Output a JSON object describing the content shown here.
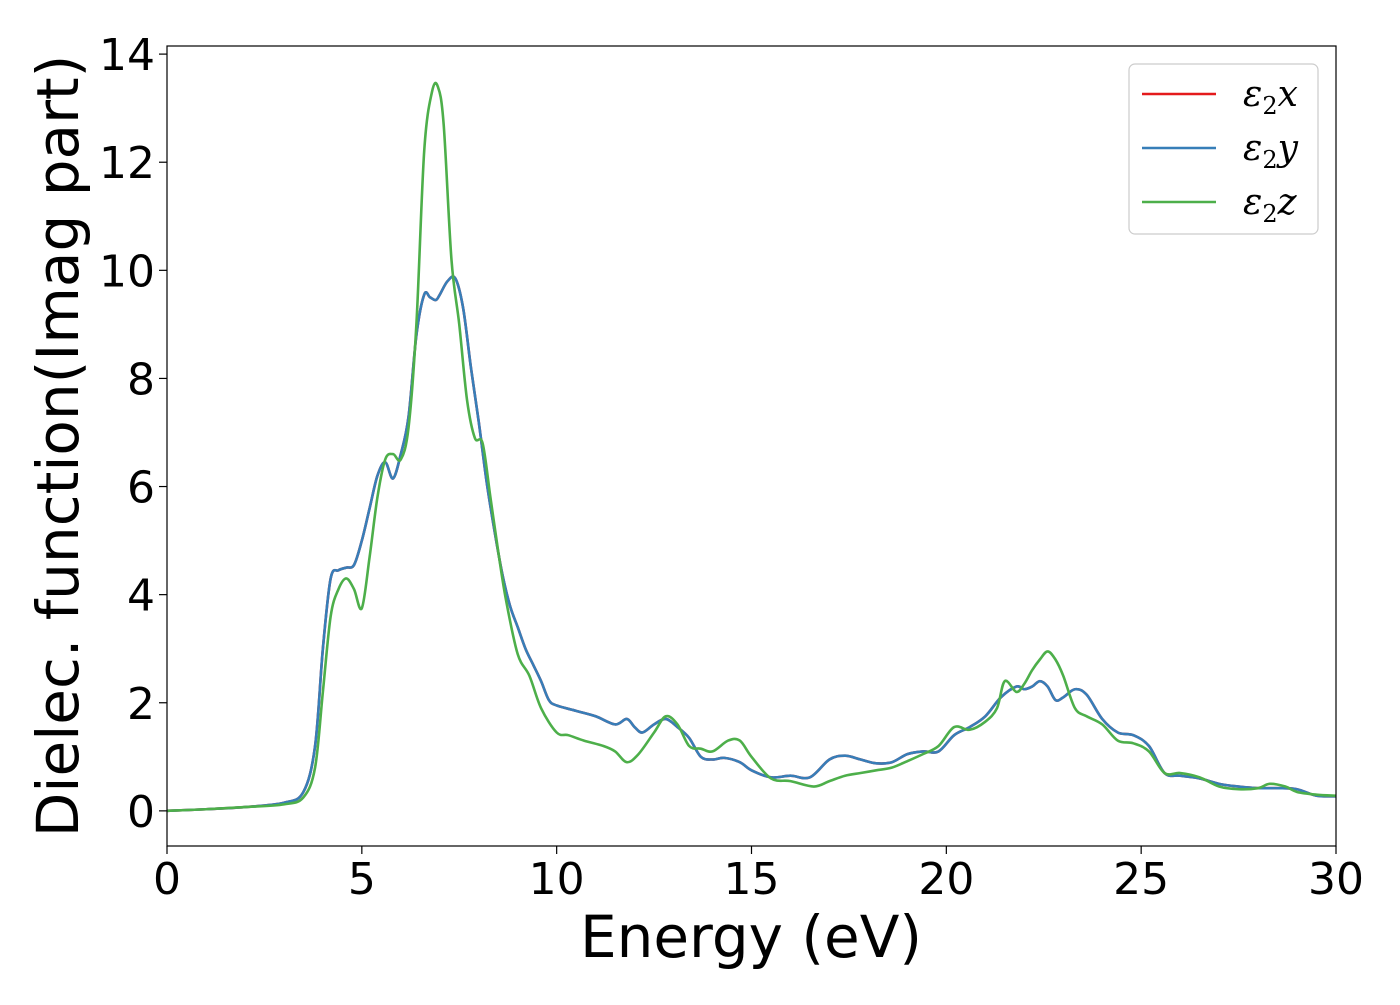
{
  "chart_data": {
    "type": "line",
    "title": "",
    "xlabel": "Energy (eV)",
    "ylabel": "Dielec. function(Imag part)",
    "xlim": [
      0,
      30
    ],
    "ylim": [
      -0.65,
      14.15
    ],
    "xticks": [
      0,
      5,
      10,
      15,
      20,
      25,
      30
    ],
    "yticks": [
      0,
      2,
      4,
      6,
      8,
      10,
      12,
      14
    ],
    "grid": false,
    "legend_position": "top-right",
    "series": [
      {
        "name": "ε2x",
        "legend_base": "ε",
        "legend_sub": "2",
        "legend_var": "x",
        "color": "#e41a1c",
        "x": [
          0,
          1,
          2,
          3,
          3.5,
          3.8,
          4.0,
          4.2,
          4.4,
          4.6,
          4.8,
          5.0,
          5.2,
          5.4,
          5.6,
          5.8,
          6.0,
          6.2,
          6.4,
          6.6,
          6.75,
          6.9,
          7.0,
          7.2,
          7.4,
          7.6,
          7.8,
          8.0,
          8.2,
          8.4,
          8.6,
          8.8,
          9.0,
          9.2,
          9.4,
          9.6,
          9.8,
          10.0,
          10.5,
          11.0,
          11.5,
          11.8,
          12.0,
          12.2,
          12.5,
          12.8,
          13.1,
          13.4,
          13.7,
          14.0,
          14.3,
          14.7,
          15.0,
          15.5,
          16.0,
          16.5,
          17.0,
          17.4,
          17.8,
          18.2,
          18.6,
          19.0,
          19.4,
          19.8,
          20.2,
          20.6,
          21.0,
          21.4,
          21.8,
          22.0,
          22.2,
          22.4,
          22.6,
          22.8,
          23.0,
          23.3,
          23.6,
          24.0,
          24.4,
          24.8,
          25.2,
          25.6,
          26.0,
          26.5,
          27.0,
          27.5,
          28.0,
          28.5,
          29.0,
          29.5,
          30.0
        ],
        "y": [
          0.0,
          0.03,
          0.07,
          0.15,
          0.35,
          1.2,
          3.0,
          4.3,
          4.45,
          4.5,
          4.55,
          5.0,
          5.6,
          6.2,
          6.45,
          6.15,
          6.6,
          7.3,
          8.8,
          9.55,
          9.5,
          9.45,
          9.55,
          9.8,
          9.85,
          9.3,
          8.2,
          7.2,
          6.1,
          5.2,
          4.4,
          3.8,
          3.4,
          3.0,
          2.7,
          2.4,
          2.05,
          1.95,
          1.85,
          1.75,
          1.6,
          1.7,
          1.55,
          1.45,
          1.6,
          1.7,
          1.55,
          1.35,
          1.0,
          0.95,
          0.98,
          0.9,
          0.75,
          0.62,
          0.65,
          0.62,
          0.95,
          1.02,
          0.95,
          0.88,
          0.9,
          1.05,
          1.1,
          1.1,
          1.4,
          1.55,
          1.75,
          2.1,
          2.3,
          2.25,
          2.3,
          2.4,
          2.3,
          2.05,
          2.1,
          2.25,
          2.15,
          1.7,
          1.45,
          1.4,
          1.2,
          0.7,
          0.65,
          0.6,
          0.5,
          0.45,
          0.42,
          0.42,
          0.4,
          0.28,
          0.27
        ]
      },
      {
        "name": "ε2y",
        "legend_base": "ε",
        "legend_sub": "2",
        "legend_var": "y",
        "color": "#377eb8",
        "x": [
          0,
          1,
          2,
          3,
          3.5,
          3.8,
          4.0,
          4.2,
          4.4,
          4.6,
          4.8,
          5.0,
          5.2,
          5.4,
          5.6,
          5.8,
          6.0,
          6.2,
          6.4,
          6.6,
          6.75,
          6.9,
          7.0,
          7.2,
          7.4,
          7.6,
          7.8,
          8.0,
          8.2,
          8.4,
          8.6,
          8.8,
          9.0,
          9.2,
          9.4,
          9.6,
          9.8,
          10.0,
          10.5,
          11.0,
          11.5,
          11.8,
          12.0,
          12.2,
          12.5,
          12.8,
          13.1,
          13.4,
          13.7,
          14.0,
          14.3,
          14.7,
          15.0,
          15.5,
          16.0,
          16.5,
          17.0,
          17.4,
          17.8,
          18.2,
          18.6,
          19.0,
          19.4,
          19.8,
          20.2,
          20.6,
          21.0,
          21.4,
          21.8,
          22.0,
          22.2,
          22.4,
          22.6,
          22.8,
          23.0,
          23.3,
          23.6,
          24.0,
          24.4,
          24.8,
          25.2,
          25.6,
          26.0,
          26.5,
          27.0,
          27.5,
          28.0,
          28.5,
          29.0,
          29.5,
          30.0
        ],
        "y": [
          0.0,
          0.03,
          0.07,
          0.15,
          0.35,
          1.2,
          3.0,
          4.3,
          4.45,
          4.5,
          4.55,
          5.0,
          5.6,
          6.2,
          6.45,
          6.15,
          6.6,
          7.3,
          8.8,
          9.55,
          9.5,
          9.45,
          9.55,
          9.8,
          9.85,
          9.3,
          8.2,
          7.2,
          6.1,
          5.2,
          4.4,
          3.8,
          3.4,
          3.0,
          2.7,
          2.4,
          2.05,
          1.95,
          1.85,
          1.75,
          1.6,
          1.7,
          1.55,
          1.45,
          1.6,
          1.7,
          1.55,
          1.35,
          1.0,
          0.95,
          0.98,
          0.9,
          0.75,
          0.62,
          0.65,
          0.62,
          0.95,
          1.02,
          0.95,
          0.88,
          0.9,
          1.05,
          1.1,
          1.1,
          1.4,
          1.55,
          1.75,
          2.1,
          2.3,
          2.25,
          2.3,
          2.4,
          2.3,
          2.05,
          2.1,
          2.25,
          2.15,
          1.7,
          1.45,
          1.4,
          1.2,
          0.7,
          0.65,
          0.6,
          0.5,
          0.45,
          0.42,
          0.42,
          0.4,
          0.28,
          0.27
        ]
      },
      {
        "name": "ε2z",
        "legend_base": "ε",
        "legend_sub": "2",
        "legend_var": "z",
        "color": "#4daf4a",
        "x": [
          0,
          1,
          2,
          3,
          3.5,
          3.8,
          4.0,
          4.2,
          4.4,
          4.6,
          4.8,
          5.0,
          5.2,
          5.4,
          5.6,
          5.8,
          6.0,
          6.2,
          6.4,
          6.6,
          6.8,
          6.95,
          7.1,
          7.3,
          7.5,
          7.7,
          7.9,
          8.1,
          8.3,
          8.5,
          8.7,
          9.0,
          9.3,
          9.6,
          10.0,
          10.3,
          10.7,
          11.2,
          11.5,
          11.8,
          12.1,
          12.5,
          12.8,
          13.1,
          13.4,
          13.7,
          14.0,
          14.4,
          14.7,
          15.0,
          15.5,
          16.0,
          16.6,
          17.0,
          17.4,
          17.8,
          18.2,
          18.6,
          19.0,
          19.4,
          19.8,
          20.2,
          20.6,
          21.0,
          21.3,
          21.5,
          21.8,
          22.0,
          22.2,
          22.4,
          22.6,
          22.8,
          23.0,
          23.3,
          23.6,
          24.0,
          24.4,
          24.8,
          25.2,
          25.6,
          26.0,
          26.5,
          27.0,
          27.5,
          28.0,
          28.3,
          28.7,
          29.0,
          29.5,
          30.0
        ],
        "y": [
          0.0,
          0.03,
          0.07,
          0.12,
          0.25,
          0.8,
          2.2,
          3.6,
          4.1,
          4.3,
          4.1,
          3.75,
          4.7,
          5.8,
          6.5,
          6.6,
          6.5,
          7.1,
          9.0,
          12.2,
          13.3,
          13.4,
          12.7,
          10.2,
          9.0,
          7.6,
          6.9,
          6.8,
          5.8,
          4.8,
          3.9,
          2.9,
          2.5,
          1.9,
          1.45,
          1.4,
          1.3,
          1.2,
          1.1,
          0.9,
          1.05,
          1.45,
          1.75,
          1.6,
          1.2,
          1.15,
          1.1,
          1.3,
          1.3,
          1.0,
          0.6,
          0.55,
          0.45,
          0.55,
          0.65,
          0.7,
          0.75,
          0.8,
          0.92,
          1.05,
          1.2,
          1.55,
          1.5,
          1.65,
          1.9,
          2.4,
          2.2,
          2.35,
          2.6,
          2.8,
          2.95,
          2.8,
          2.5,
          1.9,
          1.75,
          1.6,
          1.3,
          1.25,
          1.1,
          0.7,
          0.7,
          0.62,
          0.45,
          0.4,
          0.42,
          0.5,
          0.45,
          0.35,
          0.3,
          0.28
        ]
      }
    ]
  }
}
